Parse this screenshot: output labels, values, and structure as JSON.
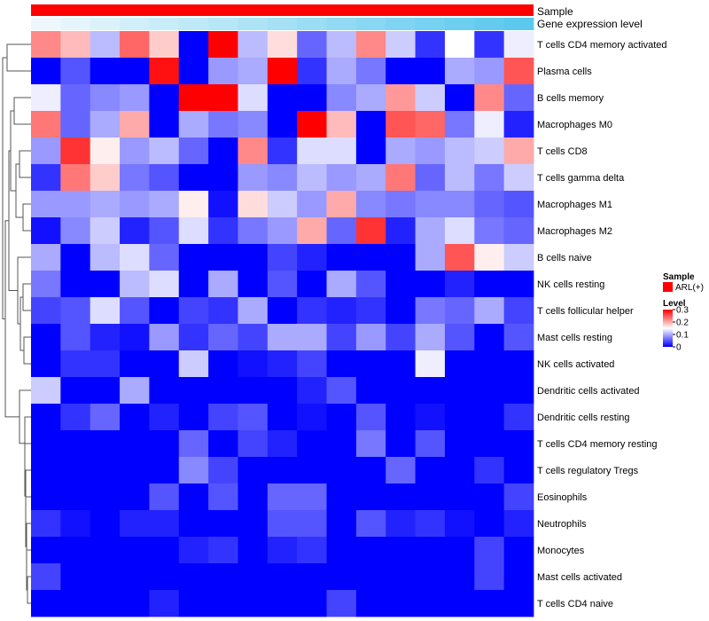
{
  "chart_data": {
    "type": "heatmap",
    "title": "",
    "annotations": [
      {
        "name": "Sample",
        "kind": "categorical",
        "value": "ARL(+)",
        "color": "#ff0000"
      },
      {
        "name": "Gene expression level",
        "kind": "gradient",
        "color_low": "#eef8fc",
        "color_high": "#5bc8ee"
      }
    ],
    "rows": [
      "T cells CD4 memory activated",
      "Plasma cells",
      "B cells memory",
      "Macrophages M0",
      "T cells CD8",
      "T cells gamma delta",
      "Macrophages M1",
      "Macrophages M2",
      "B cells naive",
      "NK cells resting",
      "T cells follicular helper",
      "Mast cells resting",
      "NK cells activated",
      "Dendritic cells activated",
      "Dendritic cells resting",
      "T cells CD4 memory resting",
      "T cells regulatory  Tregs",
      "Eosinophils",
      "Neutrophils",
      "Monocytes",
      "Mast cells activated",
      "T cells CD4 naive"
    ],
    "n_columns": 17,
    "value_range": [
      0,
      0.3
    ],
    "colors": {
      "low": "#0000ff",
      "mid": "#ffffff",
      "high": "#ff0000",
      "mid_value": 0.15
    },
    "values": [
      [
        0.22,
        0.19,
        0.11,
        0.24,
        0.18,
        0.0,
        0.3,
        0.11,
        0.17,
        0.06,
        0.11,
        0.22,
        0.12,
        0.03,
        0.15,
        0.03,
        0.14
      ],
      [
        0.0,
        0.05,
        0.0,
        0.0,
        0.29,
        0.0,
        0.09,
        0.1,
        0.3,
        0.03,
        0.1,
        0.07,
        0.0,
        0.0,
        0.1,
        0.09,
        0.25
      ],
      [
        0.14,
        0.06,
        0.08,
        0.09,
        0.0,
        0.3,
        0.3,
        0.13,
        0.0,
        0.0,
        0.08,
        0.1,
        0.21,
        0.12,
        0.0,
        0.22,
        0.06
      ],
      [
        0.23,
        0.06,
        0.1,
        0.2,
        0.0,
        0.1,
        0.07,
        0.08,
        0.0,
        0.3,
        0.19,
        0.0,
        0.25,
        0.24,
        0.07,
        0.14,
        0.02
      ],
      [
        0.09,
        0.27,
        0.16,
        0.09,
        0.11,
        0.06,
        0.0,
        0.22,
        0.03,
        0.13,
        0.13,
        0.0,
        0.1,
        0.09,
        0.11,
        0.12,
        0.2
      ],
      [
        0.03,
        0.23,
        0.18,
        0.07,
        0.05,
        0.0,
        0.0,
        0.09,
        0.08,
        0.11,
        0.09,
        0.1,
        0.23,
        0.06,
        0.11,
        0.07,
        0.12
      ],
      [
        0.09,
        0.09,
        0.1,
        0.09,
        0.1,
        0.16,
        0.01,
        0.17,
        0.12,
        0.09,
        0.2,
        0.08,
        0.07,
        0.08,
        0.08,
        0.06,
        0.05
      ],
      [
        0.01,
        0.08,
        0.12,
        0.02,
        0.05,
        0.13,
        0.03,
        0.07,
        0.09,
        0.2,
        0.06,
        0.27,
        0.02,
        0.1,
        0.13,
        0.07,
        0.06
      ],
      [
        0.1,
        0.0,
        0.11,
        0.13,
        0.06,
        0.0,
        0.0,
        0.0,
        0.04,
        0.02,
        0.0,
        0.0,
        0.0,
        0.1,
        0.25,
        0.16,
        0.12
      ],
      [
        0.07,
        0.0,
        0.0,
        0.11,
        0.13,
        0.0,
        0.1,
        0.0,
        0.05,
        0.0,
        0.1,
        0.05,
        0.0,
        0.0,
        0.02,
        0.0,
        0.0
      ],
      [
        0.04,
        0.05,
        0.13,
        0.05,
        0.0,
        0.04,
        0.03,
        0.1,
        0.0,
        0.03,
        0.02,
        0.03,
        0.0,
        0.07,
        0.06,
        0.1,
        0.04
      ],
      [
        0.0,
        0.05,
        0.02,
        0.01,
        0.09,
        0.03,
        0.06,
        0.04,
        0.1,
        0.1,
        0.04,
        0.09,
        0.04,
        0.1,
        0.05,
        0.0,
        0.05
      ],
      [
        0.0,
        0.03,
        0.03,
        0.0,
        0.0,
        0.12,
        0.0,
        0.01,
        0.02,
        0.04,
        0.0,
        0.0,
        0.0,
        0.14,
        0.0,
        0.0,
        0.0
      ],
      [
        0.12,
        0.0,
        0.0,
        0.1,
        0.0,
        0.0,
        0.0,
        0.0,
        0.0,
        0.02,
        0.05,
        0.0,
        0.0,
        0.0,
        0.0,
        0.0,
        0.0
      ],
      [
        0.0,
        0.03,
        0.06,
        0.0,
        0.02,
        0.0,
        0.04,
        0.05,
        0.0,
        0.01,
        0.0,
        0.05,
        0.0,
        0.01,
        0.0,
        0.0,
        0.03
      ],
      [
        0.0,
        0.0,
        0.0,
        0.0,
        0.0,
        0.06,
        0.0,
        0.04,
        0.02,
        0.0,
        0.0,
        0.07,
        0.0,
        0.05,
        0.0,
        0.0,
        0.0
      ],
      [
        0.0,
        0.0,
        0.0,
        0.0,
        0.0,
        0.08,
        0.04,
        0.0,
        0.0,
        0.0,
        0.0,
        0.0,
        0.06,
        0.0,
        0.0,
        0.03,
        0.0
      ],
      [
        0.0,
        0.0,
        0.0,
        0.0,
        0.05,
        0.0,
        0.05,
        0.0,
        0.06,
        0.06,
        0.0,
        0.0,
        0.0,
        0.0,
        0.0,
        0.0,
        0.04
      ],
      [
        0.03,
        0.01,
        0.0,
        0.02,
        0.02,
        0.0,
        0.0,
        0.0,
        0.05,
        0.05,
        0.0,
        0.05,
        0.02,
        0.03,
        0.01,
        0.0,
        0.02
      ],
      [
        0.0,
        0.0,
        0.0,
        0.0,
        0.0,
        0.02,
        0.03,
        0.0,
        0.02,
        0.03,
        0.0,
        0.0,
        0.0,
        0.0,
        0.0,
        0.04,
        0.0
      ],
      [
        0.04,
        0.0,
        0.0,
        0.0,
        0.0,
        0.0,
        0.0,
        0.0,
        0.0,
        0.0,
        0.0,
        0.0,
        0.0,
        0.0,
        0.0,
        0.04,
        0.0
      ],
      [
        0.0,
        0.0,
        0.0,
        0.0,
        0.02,
        0.0,
        0.0,
        0.0,
        0.0,
        0.0,
        0.04,
        0.0,
        0.0,
        0.0,
        0.0,
        0.0,
        0.0
      ]
    ],
    "dendrogram": "row-clustering",
    "legend": [
      {
        "title": "Sample",
        "items": [
          {
            "label": "ARL(+)",
            "color": "#ff0000"
          }
        ]
      },
      {
        "title": "Level",
        "ticks": [
          "0.3",
          "0.2",
          "0.1",
          "0"
        ],
        "tick_values": [
          0.3,
          0.2,
          0.1,
          0
        ]
      }
    ]
  }
}
